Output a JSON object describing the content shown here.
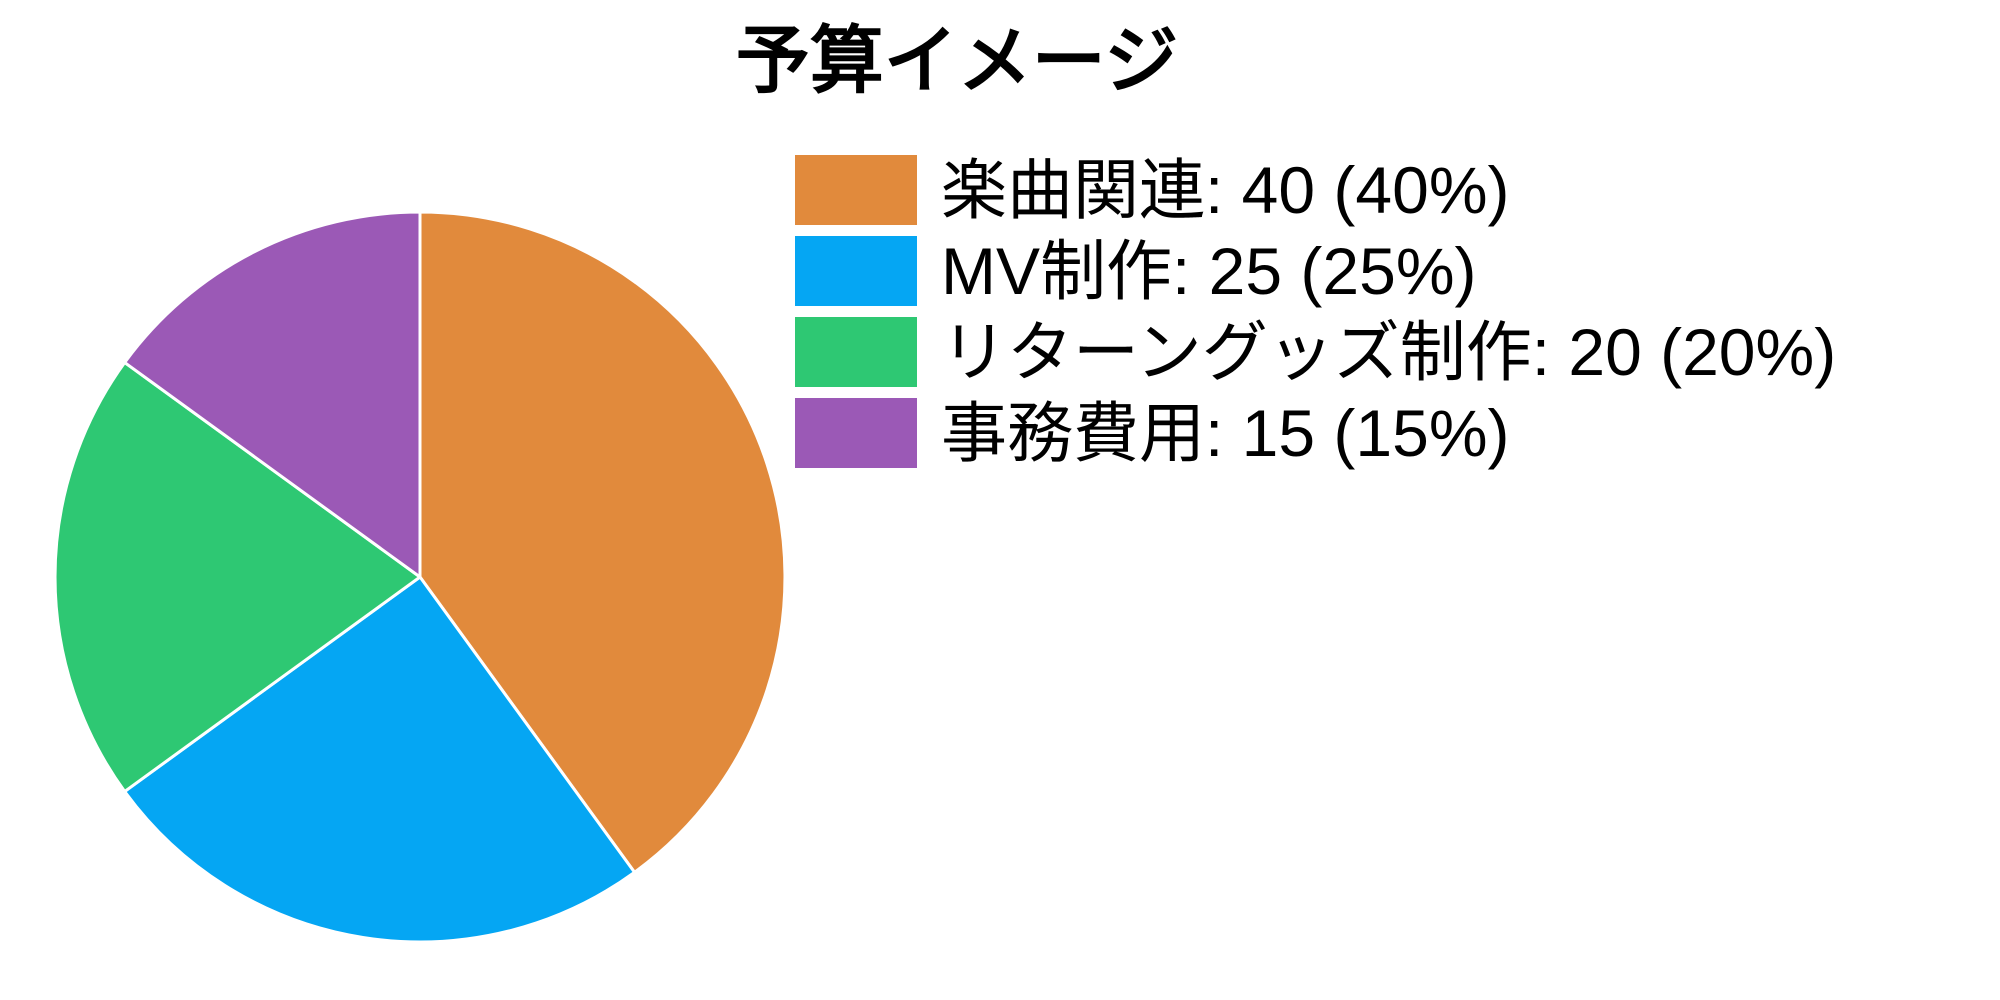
{
  "title": "予算イメージ",
  "chart_data": {
    "type": "pie",
    "title": "予算イメージ",
    "categories": [
      "楽曲関連",
      "MV制作",
      "リターングッズ制作",
      "事務費用"
    ],
    "values": [
      40,
      25,
      20,
      15
    ],
    "percent_labels": [
      "40%",
      "25%",
      "20%",
      "15%"
    ],
    "colors": [
      "#E18A3C",
      "#05A6F3",
      "#2EC873",
      "#9B59B6"
    ],
    "start_angle_deg": 0,
    "direction": "clockwise",
    "legend_position": "right-top",
    "slice_border_color": "#ffffff"
  },
  "legend": {
    "items": [
      {
        "label": "楽曲関連: 40 (40%)",
        "color": "#E18A3C"
      },
      {
        "label": "MV制作: 25 (25%)",
        "color": "#05A6F3"
      },
      {
        "label": "リターングッズ制作: 20 (20%)",
        "color": "#2EC873"
      },
      {
        "label": "事務費用: 15 (15%)",
        "color": "#9B59B6"
      }
    ]
  }
}
